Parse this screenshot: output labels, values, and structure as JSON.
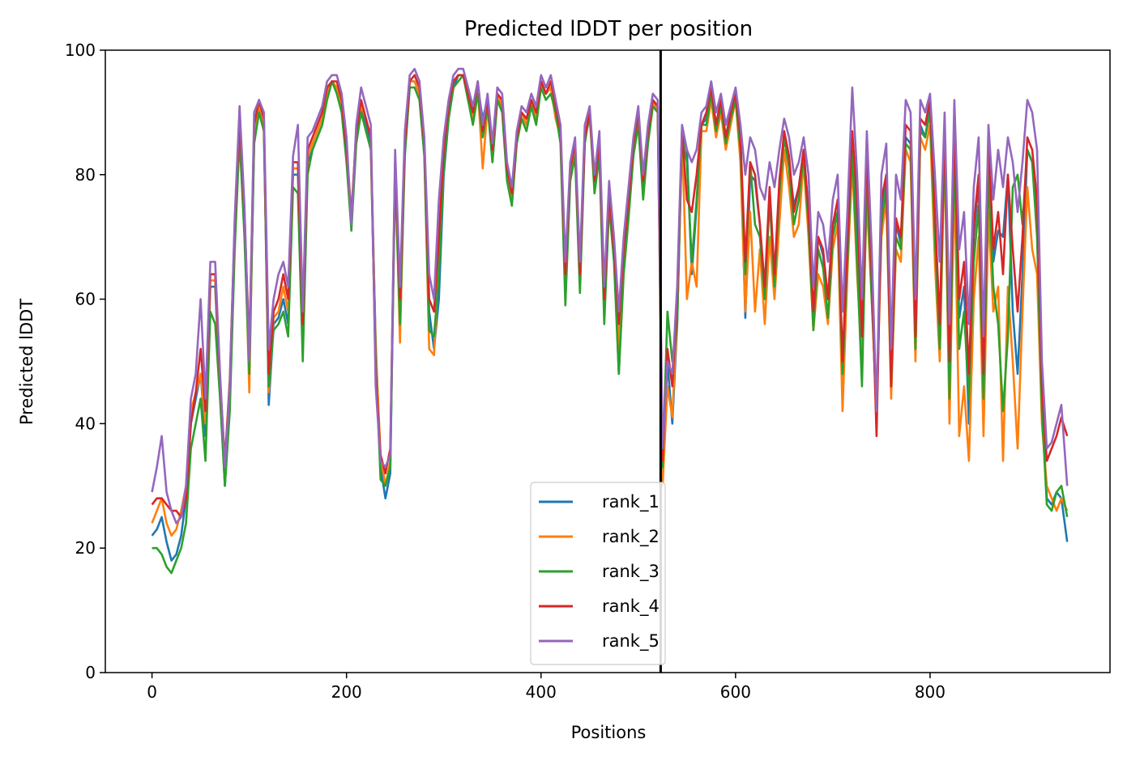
{
  "chart_data": {
    "type": "line",
    "title": "Predicted lDDT per position",
    "xlabel": "Positions",
    "ylabel": "Predicted lDDT",
    "xlim": [
      -48,
      985
    ],
    "ylim": [
      0,
      100
    ],
    "xticks": [
      0,
      200,
      400,
      600,
      800
    ],
    "yticks": [
      0,
      20,
      40,
      60,
      80,
      100
    ],
    "grid": false,
    "legend_position": "bottom-center",
    "chain_break": 523,
    "x": [
      0,
      5,
      10,
      15,
      20,
      25,
      30,
      35,
      40,
      45,
      50,
      55,
      60,
      65,
      70,
      75,
      80,
      85,
      90,
      95,
      100,
      105,
      110,
      115,
      120,
      125,
      130,
      135,
      140,
      145,
      150,
      155,
      160,
      165,
      170,
      175,
      180,
      185,
      190,
      195,
      200,
      205,
      210,
      215,
      220,
      225,
      230,
      235,
      240,
      245,
      250,
      255,
      260,
      265,
      270,
      275,
      280,
      285,
      290,
      295,
      300,
      305,
      310,
      315,
      320,
      325,
      330,
      335,
      340,
      345,
      350,
      355,
      360,
      365,
      370,
      375,
      380,
      385,
      390,
      395,
      400,
      405,
      410,
      415,
      420,
      425,
      430,
      435,
      440,
      445,
      450,
      455,
      460,
      465,
      470,
      475,
      480,
      485,
      490,
      495,
      500,
      505,
      510,
      515,
      520,
      525,
      530,
      535,
      540,
      545,
      550,
      555,
      560,
      565,
      570,
      575,
      580,
      585,
      590,
      595,
      600,
      605,
      610,
      615,
      620,
      625,
      630,
      635,
      640,
      645,
      650,
      655,
      660,
      665,
      670,
      675,
      680,
      685,
      690,
      695,
      700,
      705,
      710,
      715,
      720,
      725,
      730,
      735,
      740,
      745,
      750,
      755,
      760,
      765,
      770,
      775,
      780,
      785,
      790,
      795,
      800,
      805,
      810,
      815,
      820,
      825,
      830,
      835,
      840,
      845,
      850,
      855,
      860,
      865,
      870,
      875,
      880,
      885,
      890,
      895,
      900,
      905,
      910,
      915,
      920,
      925,
      930,
      935,
      941
    ],
    "series": [
      {
        "name": "rank_1",
        "color": "#1f77b4",
        "values": [
          22,
          23,
          25,
          21,
          18,
          19,
          22,
          28,
          40,
          44,
          48,
          38,
          62,
          62,
          45,
          30,
          44,
          70,
          88,
          72,
          48,
          86,
          91,
          88,
          43,
          56,
          57,
          60,
          56,
          80,
          80,
          52,
          82,
          84,
          86,
          88,
          93,
          95,
          94,
          91,
          83,
          72,
          86,
          91,
          88,
          85,
          53,
          33,
          28,
          32,
          82,
          58,
          84,
          95,
          95,
          93,
          84,
          58,
          52,
          60,
          80,
          89,
          94,
          96,
          96,
          92,
          89,
          94,
          89,
          92,
          82,
          92,
          91,
          80,
          76,
          86,
          90,
          88,
          92,
          89,
          95,
          93,
          94,
          90,
          86,
          63,
          80,
          84,
          63,
          86,
          90,
          78,
          84,
          58,
          76,
          68,
          48,
          66,
          74,
          84,
          89,
          78,
          86,
          92,
          91,
          32,
          50,
          40,
          56,
          87,
          84,
          64,
          75,
          88,
          89,
          93,
          88,
          92,
          86,
          90,
          93,
          85,
          57,
          80,
          79,
          72,
          60,
          77,
          62,
          78,
          86,
          82,
          75,
          78,
          84,
          74,
          58,
          70,
          67,
          60,
          72,
          74,
          44,
          68,
          85,
          70,
          52,
          82,
          62,
          40,
          74,
          80,
          45,
          72,
          69,
          86,
          85,
          52,
          88,
          86,
          91,
          72,
          53,
          86,
          46,
          86,
          57,
          62,
          40,
          70,
          79,
          45,
          84,
          66,
          71,
          70,
          80,
          58,
          48,
          64,
          84,
          82,
          74,
          44,
          28,
          27,
          29,
          28,
          21
        ]
      },
      {
        "name": "rank_2",
        "color": "#ff7f0e",
        "values": [
          24,
          26,
          28,
          24,
          22,
          23,
          26,
          30,
          42,
          45,
          48,
          40,
          63,
          63,
          46,
          32,
          45,
          71,
          88,
          73,
          45,
          87,
          91,
          88,
          45,
          57,
          58,
          62,
          58,
          81,
          81,
          54,
          83,
          85,
          87,
          89,
          93,
          95,
          94,
          91,
          84,
          74,
          87,
          91,
          89,
          86,
          52,
          35,
          30,
          34,
          82,
          53,
          85,
          95,
          95,
          93,
          84,
          52,
          51,
          66,
          82,
          90,
          95,
          96,
          96,
          92,
          89,
          94,
          81,
          91,
          83,
          93,
          91,
          80,
          76,
          86,
          90,
          88,
          92,
          89,
          95,
          93,
          94,
          89,
          86,
          64,
          80,
          84,
          64,
          86,
          89,
          79,
          84,
          60,
          77,
          69,
          52,
          68,
          75,
          84,
          89,
          80,
          86,
          92,
          90,
          30,
          46,
          41,
          58,
          87,
          60,
          66,
          62,
          87,
          87,
          92,
          86,
          90,
          84,
          88,
          92,
          82,
          58,
          74,
          58,
          68,
          56,
          70,
          60,
          72,
          84,
          78,
          70,
          72,
          82,
          70,
          55,
          64,
          62,
          56,
          68,
          72,
          42,
          64,
          82,
          64,
          50,
          76,
          60,
          42,
          70,
          76,
          44,
          68,
          66,
          84,
          82,
          50,
          86,
          84,
          88,
          66,
          50,
          84,
          40,
          80,
          38,
          46,
          34,
          60,
          70,
          38,
          74,
          58,
          62,
          34,
          62,
          50,
          36,
          58,
          78,
          68,
          64,
          40,
          30,
          28,
          26,
          28,
          26
        ]
      },
      {
        "name": "rank_3",
        "color": "#2ca02c",
        "values": [
          20,
          20,
          19,
          17,
          16,
          18,
          20,
          24,
          36,
          40,
          44,
          34,
          58,
          56,
          44,
          30,
          42,
          68,
          86,
          70,
          48,
          85,
          90,
          87,
          46,
          55,
          56,
          58,
          54,
          78,
          77,
          50,
          80,
          84,
          86,
          88,
          92,
          95,
          93,
          90,
          82,
          71,
          85,
          90,
          87,
          84,
          50,
          31,
          30,
          33,
          80,
          56,
          83,
          94,
          94,
          92,
          83,
          55,
          54,
          64,
          81,
          89,
          94,
          95,
          96,
          92,
          88,
          93,
          86,
          91,
          82,
          92,
          90,
          79,
          75,
          85,
          89,
          87,
          91,
          88,
          94,
          92,
          93,
          90,
          85,
          59,
          79,
          83,
          61,
          85,
          90,
          77,
          83,
          56,
          75,
          66,
          48,
          64,
          73,
          83,
          88,
          76,
          85,
          91,
          90,
          33,
          58,
          50,
          56,
          86,
          82,
          66,
          76,
          88,
          88,
          93,
          87,
          91,
          85,
          89,
          92,
          84,
          64,
          82,
          72,
          70,
          60,
          76,
          62,
          77,
          86,
          81,
          72,
          76,
          83,
          72,
          55,
          68,
          65,
          57,
          70,
          74,
          48,
          66,
          84,
          66,
          46,
          80,
          60,
          43,
          72,
          78,
          46,
          70,
          68,
          85,
          84,
          52,
          87,
          86,
          90,
          70,
          52,
          86,
          44,
          84,
          52,
          58,
          44,
          66,
          75,
          44,
          80,
          62,
          56,
          42,
          54,
          78,
          80,
          72,
          84,
          82,
          70,
          42,
          27,
          26,
          29,
          30,
          25
        ]
      },
      {
        "name": "rank_4",
        "color": "#d62728",
        "values": [
          27,
          28,
          28,
          27,
          26,
          26,
          25,
          28,
          40,
          45,
          52,
          42,
          64,
          64,
          47,
          34,
          47,
          72,
          89,
          74,
          52,
          88,
          92,
          89,
          48,
          58,
          60,
          64,
          60,
          82,
          82,
          56,
          84,
          86,
          88,
          90,
          94,
          95,
          95,
          92,
          84,
          73,
          87,
          92,
          89,
          86,
          48,
          35,
          32,
          36,
          82,
          60,
          85,
          95,
          96,
          94,
          85,
          60,
          58,
          70,
          84,
          91,
          95,
          96,
          96,
          93,
          90,
          95,
          87,
          92,
          84,
          93,
          92,
          81,
          77,
          86,
          90,
          89,
          92,
          90,
          95,
          93,
          95,
          91,
          87,
          64,
          81,
          85,
          64,
          86,
          90,
          79,
          85,
          60,
          77,
          68,
          56,
          68,
          76,
          85,
          90,
          79,
          87,
          92,
          91,
          34,
          52,
          46,
          60,
          87,
          76,
          74,
          80,
          88,
          90,
          94,
          88,
          92,
          86,
          90,
          93,
          86,
          66,
          82,
          80,
          72,
          62,
          78,
          64,
          79,
          87,
          83,
          74,
          78,
          84,
          74,
          58,
          70,
          68,
          60,
          72,
          76,
          50,
          69,
          87,
          76,
          54,
          84,
          64,
          38,
          76,
          80,
          46,
          73,
          70,
          88,
          87,
          54,
          89,
          88,
          92,
          74,
          56,
          88,
          50,
          88,
          60,
          66,
          48,
          72,
          80,
          48,
          86,
          68,
          74,
          64,
          80,
          68,
          58,
          70,
          86,
          84,
          76,
          46,
          34,
          36,
          38,
          41,
          38
        ]
      },
      {
        "name": "rank_5",
        "color": "#9467bd",
        "values": [
          29,
          33,
          38,
          29,
          26,
          24,
          25,
          30,
          44,
          48,
          60,
          44,
          66,
          66,
          48,
          33,
          46,
          73,
          91,
          75,
          50,
          90,
          92,
          90,
          52,
          60,
          64,
          66,
          62,
          83,
          88,
          58,
          86,
          87,
          89,
          91,
          95,
          96,
          96,
          93,
          86,
          72,
          88,
          94,
          91,
          88,
          46,
          34,
          33,
          35,
          84,
          62,
          87,
          96,
          97,
          95,
          86,
          64,
          60,
          76,
          86,
          92,
          96,
          97,
          97,
          94,
          91,
          95,
          88,
          93,
          85,
          94,
          93,
          82,
          78,
          87,
          91,
          90,
          93,
          91,
          96,
          94,
          96,
          92,
          88,
          66,
          82,
          86,
          66,
          88,
          91,
          80,
          87,
          62,
          79,
          70,
          58,
          70,
          78,
          86,
          91,
          80,
          88,
          93,
          92,
          36,
          50,
          48,
          62,
          88,
          84,
          82,
          84,
          90,
          91,
          95,
          90,
          93,
          88,
          91,
          94,
          88,
          80,
          86,
          84,
          78,
          76,
          82,
          78,
          84,
          89,
          86,
          80,
          82,
          86,
          80,
          62,
          74,
          72,
          66,
          76,
          80,
          58,
          74,
          94,
          80,
          60,
          87,
          68,
          42,
          80,
          85,
          52,
          80,
          76,
          92,
          90,
          60,
          92,
          90,
          93,
          80,
          66,
          90,
          56,
          92,
          68,
          74,
          56,
          78,
          86,
          54,
          88,
          76,
          84,
          78,
          86,
          82,
          74,
          82,
          92,
          90,
          84,
          50,
          36,
          37,
          40,
          43,
          30
        ]
      }
    ]
  }
}
